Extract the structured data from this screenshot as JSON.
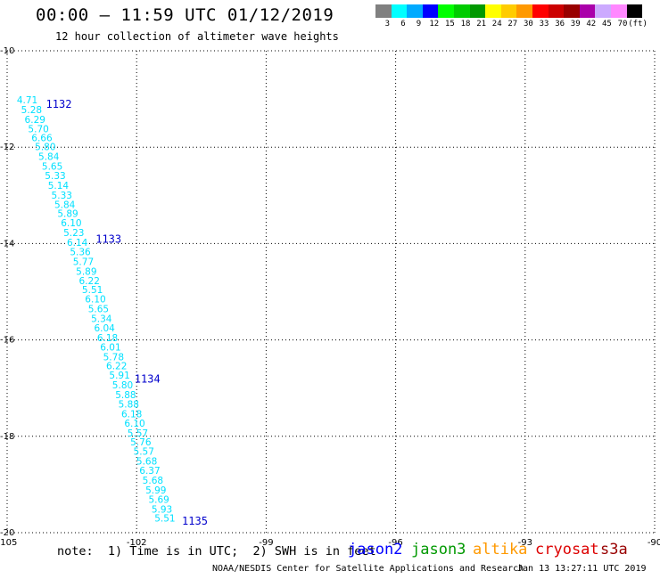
{
  "header": {
    "title": "00:00 – 11:59 UTC 01/12/2019",
    "subtitle": "12 hour collection of altimeter wave heights"
  },
  "color_scale": {
    "colors": [
      "#808080",
      "#00ffff",
      "#00aaff",
      "#0000ff",
      "#00ff00",
      "#00cc00",
      "#009900",
      "#ffff00",
      "#ffcc00",
      "#ff9900",
      "#ff0000",
      "#cc0000",
      "#990000",
      "#aa00aa",
      "#ccaaff",
      "#ff88ff",
      "#000000"
    ],
    "labels": [
      "3",
      "6",
      "9",
      "12",
      "15",
      "18",
      "21",
      "24",
      "27",
      "30",
      "33",
      "36",
      "39",
      "42",
      "45",
      "70",
      "(ft)"
    ]
  },
  "chart_data": {
    "type": "scatter",
    "xlim": [
      -105,
      -90
    ],
    "ylim": [
      -20,
      -10
    ],
    "x_ticks": [
      "-105",
      "-102",
      "-99",
      "-96",
      "-93",
      "-90"
    ],
    "y_ticks": [
      "-10",
      "-12",
      "-14",
      "-16",
      "-18",
      "-20"
    ],
    "grid": true,
    "track_color": "#00e0ff",
    "track_points": [
      {
        "lon": -104.9,
        "lat": -11.15,
        "swh": "4.71"
      },
      {
        "lon": -104.8,
        "lat": -11.35,
        "swh": "5.28"
      },
      {
        "lon": -104.72,
        "lat": -11.55,
        "swh": "6.29"
      },
      {
        "lon": -104.64,
        "lat": -11.75,
        "swh": "5.70"
      },
      {
        "lon": -104.56,
        "lat": -11.93,
        "swh": "6.66"
      },
      {
        "lon": -104.48,
        "lat": -12.12,
        "swh": "5.80"
      },
      {
        "lon": -104.4,
        "lat": -12.32,
        "swh": "5.84"
      },
      {
        "lon": -104.32,
        "lat": -12.52,
        "swh": "5.65"
      },
      {
        "lon": -104.25,
        "lat": -12.72,
        "swh": "5.33"
      },
      {
        "lon": -104.18,
        "lat": -12.92,
        "swh": "5.14"
      },
      {
        "lon": -104.1,
        "lat": -13.12,
        "swh": "5.33"
      },
      {
        "lon": -104.03,
        "lat": -13.32,
        "swh": "5.84"
      },
      {
        "lon": -103.96,
        "lat": -13.5,
        "swh": "5.89"
      },
      {
        "lon": -103.88,
        "lat": -13.7,
        "swh": "6.10"
      },
      {
        "lon": -103.82,
        "lat": -13.9,
        "swh": "5.23"
      },
      {
        "lon": -103.74,
        "lat": -14.1,
        "swh": "6.14"
      },
      {
        "lon": -103.67,
        "lat": -14.3,
        "swh": "5.36"
      },
      {
        "lon": -103.6,
        "lat": -14.5,
        "swh": "5.77"
      },
      {
        "lon": -103.53,
        "lat": -14.7,
        "swh": "5.89"
      },
      {
        "lon": -103.46,
        "lat": -14.9,
        "swh": "6.22"
      },
      {
        "lon": -103.39,
        "lat": -15.08,
        "swh": "5.51"
      },
      {
        "lon": -103.32,
        "lat": -15.28,
        "swh": "6.10"
      },
      {
        "lon": -103.25,
        "lat": -15.48,
        "swh": "5.65"
      },
      {
        "lon": -103.18,
        "lat": -15.68,
        "swh": "5.34"
      },
      {
        "lon": -103.11,
        "lat": -15.88,
        "swh": "6.04"
      },
      {
        "lon": -103.04,
        "lat": -16.08,
        "swh": "6.18"
      },
      {
        "lon": -102.97,
        "lat": -16.28,
        "swh": "6.01"
      },
      {
        "lon": -102.9,
        "lat": -16.48,
        "swh": "5.78"
      },
      {
        "lon": -102.83,
        "lat": -16.66,
        "swh": "6.22"
      },
      {
        "lon": -102.76,
        "lat": -16.86,
        "swh": "5.91"
      },
      {
        "lon": -102.69,
        "lat": -17.06,
        "swh": "5.80"
      },
      {
        "lon": -102.62,
        "lat": -17.26,
        "swh": "5.88"
      },
      {
        "lon": -102.55,
        "lat": -17.46,
        "swh": "5.88"
      },
      {
        "lon": -102.48,
        "lat": -17.66,
        "swh": "6.18"
      },
      {
        "lon": -102.41,
        "lat": -17.86,
        "swh": "6.10"
      },
      {
        "lon": -102.34,
        "lat": -18.06,
        "swh": "5.57"
      },
      {
        "lon": -102.27,
        "lat": -18.24,
        "swh": "5.76"
      },
      {
        "lon": -102.2,
        "lat": -18.44,
        "swh": "5.57"
      },
      {
        "lon": -102.13,
        "lat": -18.64,
        "swh": "5.68"
      },
      {
        "lon": -102.06,
        "lat": -18.84,
        "swh": "6.37"
      },
      {
        "lon": -101.99,
        "lat": -19.04,
        "swh": "5.68"
      },
      {
        "lon": -101.92,
        "lat": -19.24,
        "swh": "5.99"
      },
      {
        "lon": -101.85,
        "lat": -19.44,
        "swh": "5.69"
      },
      {
        "lon": -101.78,
        "lat": -19.64,
        "swh": "5.93"
      },
      {
        "lon": -101.71,
        "lat": -19.82,
        "swh": "5.51"
      }
    ],
    "time_labels": [
      {
        "lon": -104.1,
        "lat": -11.15,
        "text": "1132",
        "color": "#0000cc"
      },
      {
        "lon": -102.95,
        "lat": -13.95,
        "text": "1133",
        "color": "#0000cc"
      },
      {
        "lon": -102.05,
        "lat": -16.85,
        "text": "1134",
        "color": "#0000cc"
      },
      {
        "lon": -100.95,
        "lat": -19.8,
        "text": "1135",
        "color": "#0000cc"
      }
    ]
  },
  "footer": {
    "note": "note:  1) Time is in UTC;  2) SWH is in feet",
    "legend": [
      {
        "label": "jason2",
        "color": "#0000ff"
      },
      {
        "label": "jason3",
        "color": "#009900"
      },
      {
        "label": "altika",
        "color": "#ff9900"
      },
      {
        "label": "cryosat",
        "color": "#dd0000"
      },
      {
        "label": "s3a",
        "color": "#990000"
      }
    ],
    "credit": "NOAA/NESDIS Center for Satellite Applications and Research",
    "timestamp": "Jan 13 13:27:11 UTC 2019"
  }
}
